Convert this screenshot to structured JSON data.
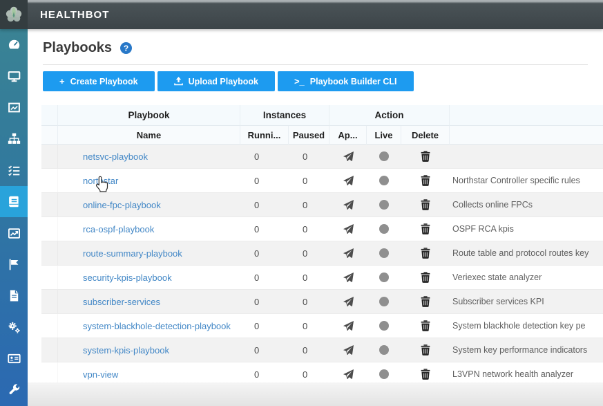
{
  "app": {
    "title": "HEALTHBOT"
  },
  "page": {
    "title": "Playbooks",
    "help_glyph": "?"
  },
  "toolbar": {
    "create_icon": "+",
    "create_label": "Create Playbook",
    "upload_label": "Upload Playbook",
    "cli_icon": ">_",
    "cli_label": "Playbook Builder CLI"
  },
  "sidebar": {
    "items": [
      {
        "icon": "gauge-icon",
        "active": false
      },
      {
        "icon": "monitor-icon",
        "active": false
      },
      {
        "icon": "frame-icon",
        "active": false
      },
      {
        "icon": "topology-icon",
        "active": false
      },
      {
        "icon": "checklist-icon",
        "active": false
      },
      {
        "icon": "book-icon",
        "active": true
      },
      {
        "icon": "chart-icon",
        "active": false
      },
      {
        "icon": "flag-icon",
        "active": false
      },
      {
        "icon": "document-icon",
        "active": false
      },
      {
        "icon": "gears-icon",
        "active": false
      },
      {
        "icon": "contact-card-icon",
        "active": false
      },
      {
        "icon": "wrench-icon",
        "active": false
      }
    ]
  },
  "table": {
    "group_headers": [
      "Playbook",
      "Instances",
      "Action"
    ],
    "columns": [
      "Name",
      "Runni...",
      "Paused",
      "Ap...",
      "Live",
      "Delete"
    ],
    "rows": [
      {
        "name": "netsvc-playbook",
        "running": "0",
        "paused": "0",
        "description": ""
      },
      {
        "name": "northstar",
        "running": "0",
        "paused": "0",
        "description": "Northstar Controller specific rules"
      },
      {
        "name": "online-fpc-playbook",
        "running": "0",
        "paused": "0",
        "description": "Collects online FPCs"
      },
      {
        "name": "rca-ospf-playbook",
        "running": "0",
        "paused": "0",
        "description": "OSPF RCA kpis"
      },
      {
        "name": "route-summary-playbook",
        "running": "0",
        "paused": "0",
        "description": "Route table and protocol routes key"
      },
      {
        "name": "security-kpis-playbook",
        "running": "0",
        "paused": "0",
        "description": "Veriexec state analyzer"
      },
      {
        "name": "subscriber-services",
        "running": "0",
        "paused": "0",
        "description": "Subscriber services KPI"
      },
      {
        "name": "system-blackhole-detection-playbook",
        "running": "0",
        "paused": "0",
        "description": "System blackhole detection key pe"
      },
      {
        "name": "system-kpis-playbook",
        "running": "0",
        "paused": "0",
        "description": "System key performance indicators"
      },
      {
        "name": "vpn-view",
        "running": "0",
        "paused": "0",
        "description": "L3VPN network health analyzer"
      }
    ]
  },
  "colors": {
    "topbar": "#3c4448",
    "sidebar_top": "#3a8394",
    "sidebar_bottom": "#2b69b2",
    "sidebar_active": "#29a3db",
    "button_blue": "#1d9bf0",
    "link_blue": "#4287c6",
    "help_blue": "#2878c8",
    "live_dot_gray": "#8f8f8f"
  }
}
